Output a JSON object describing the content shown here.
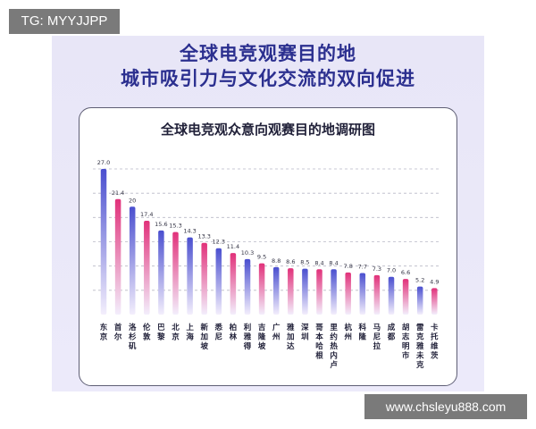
{
  "watermark_tag": "TG: MYYJJPP",
  "headline": {
    "line1": "全球电竞观赛目的地",
    "line2": "城市吸引力与文化交流的双向促进"
  },
  "footer_url": "www.chsleyu888.com",
  "colors": {
    "title": "#2b2f8f",
    "bar_blue_top": "#4a4fcf",
    "bar_pink_top": "#e1317a",
    "bar_bottom": "#f3eefc",
    "grid": "#b9b9c6"
  },
  "chart_data": {
    "type": "bar",
    "title": "全球电竞观众意向观赛目的地调研图",
    "categories": [
      "东京",
      "首尔",
      "洛杉矶",
      "伦敦",
      "巴黎",
      "北京",
      "上海",
      "新加坡",
      "悉尼",
      "柏林",
      "利雅得",
      "吉隆坡",
      "广州",
      "雅加达",
      "深圳",
      "哥本哈根",
      "里约热内卢",
      "杭州",
      "科隆",
      "马尼拉",
      "成都",
      "胡志明市",
      "雷克雅未克",
      "卡托维茨"
    ],
    "values": [
      27.0,
      21.4,
      20,
      17.4,
      15.6,
      15.3,
      14.3,
      13.3,
      12.3,
      11.4,
      10.3,
      9.5,
      8.8,
      8.6,
      8.5,
      8.4,
      8.4,
      7.8,
      7.7,
      7.3,
      7.0,
      6.6,
      5.2,
      4.9
    ],
    "value_labels": [
      "27.0",
      "21.4",
      "20",
      "17.4",
      "15.6",
      "15.3",
      "14.3",
      "13.3",
      "12.3",
      "11.4",
      "10.3",
      "9.5",
      "8.8",
      "8.6",
      "8.5",
      "8.4",
      "8.4",
      "7.8",
      "7.7",
      "7.3",
      "7.0",
      "6.6",
      "5.2",
      "4.9"
    ],
    "ylim": [
      0,
      27
    ],
    "grid": true,
    "legend": "none"
  }
}
